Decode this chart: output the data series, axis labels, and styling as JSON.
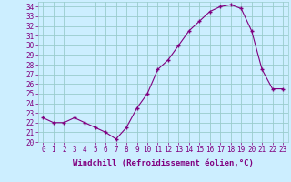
{
  "x": [
    0,
    1,
    2,
    3,
    4,
    5,
    6,
    7,
    8,
    9,
    10,
    11,
    12,
    13,
    14,
    15,
    16,
    17,
    18,
    19,
    20,
    21,
    22,
    23
  ],
  "y": [
    22.5,
    22.0,
    22.0,
    22.5,
    22.0,
    21.5,
    21.0,
    20.3,
    21.5,
    23.5,
    25.0,
    27.5,
    28.5,
    30.0,
    31.5,
    32.5,
    33.5,
    34.0,
    34.2,
    33.8,
    31.5,
    27.5,
    25.5,
    25.5
  ],
  "line_color": "#800080",
  "marker": "+",
  "bg_color": "#cceeff",
  "grid_color": "#99cccc",
  "xlabel": "Windchill (Refroidissement éolien,°C)",
  "xlabel_color": "#800080",
  "tick_color": "#800080",
  "ylim": [
    20,
    34.5
  ],
  "xlim": [
    -0.5,
    23.5
  ],
  "yticks": [
    20,
    21,
    22,
    23,
    24,
    25,
    26,
    27,
    28,
    29,
    30,
    31,
    32,
    33,
    34
  ],
  "xticks": [
    0,
    1,
    2,
    3,
    4,
    5,
    6,
    7,
    8,
    9,
    10,
    11,
    12,
    13,
    14,
    15,
    16,
    17,
    18,
    19,
    20,
    21,
    22,
    23
  ],
  "tick_fontsize": 5.5,
  "xlabel_fontsize": 6.5
}
